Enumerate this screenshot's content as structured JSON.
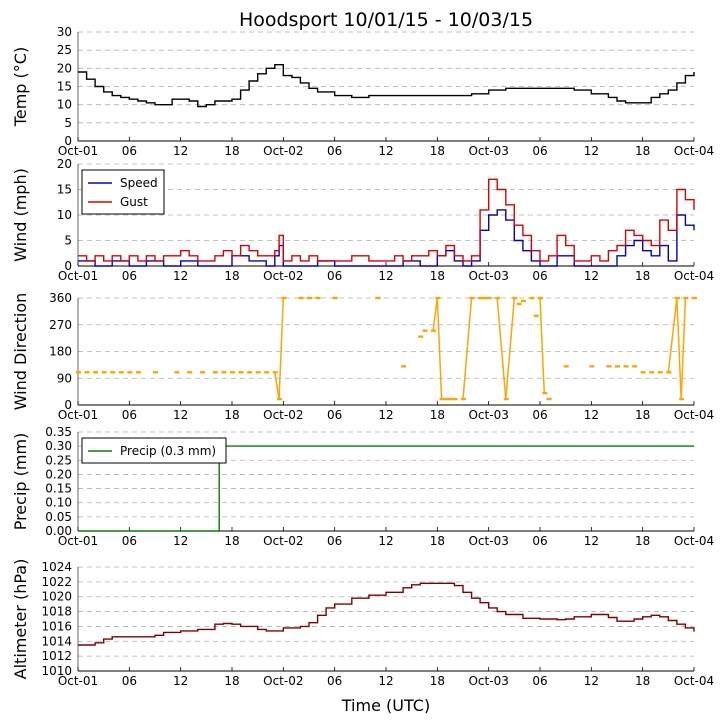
{
  "figure": {
    "title": "Hoodsport 10/01/15 - 10/03/15",
    "xlabel": "Time (UTC)"
  },
  "colors": {
    "temp": "#000000",
    "speed": "#0000cc",
    "gust": "#dd0000",
    "direction": "#ffa500",
    "precip": "#008000",
    "altimeter": "#800000",
    "grid": "#b0b0b0"
  },
  "chart_data": [
    {
      "type": "line",
      "id": "temp",
      "ylabel": "Temp (°C)",
      "ylim": [
        0,
        30
      ],
      "yticks": [
        "0",
        "5",
        "10",
        "15",
        "20",
        "25",
        "30"
      ],
      "xlim": [
        0,
        72
      ],
      "xticks": [
        "Oct-01",
        "06",
        "12",
        "18",
        "Oct-02",
        "06",
        "12",
        "18",
        "Oct-03",
        "06",
        "12",
        "18",
        "Oct-04"
      ],
      "series": [
        {
          "name": "Temperature",
          "x": [
            0,
            1,
            2,
            3,
            4,
            5,
            6,
            7,
            8,
            9,
            10,
            11,
            12,
            13,
            14,
            15,
            16,
            17,
            18,
            19,
            20,
            21,
            22,
            23,
            24,
            25,
            26,
            27,
            28,
            30,
            32,
            34,
            36,
            38,
            40,
            42,
            44,
            46,
            48,
            50,
            52,
            54,
            56,
            57,
            58,
            60,
            62,
            63,
            64,
            65,
            66,
            67,
            68,
            69,
            70,
            71,
            72
          ],
          "y": [
            19,
            17,
            15,
            13.5,
            12.5,
            12,
            11.5,
            11,
            10.5,
            10,
            10,
            11.5,
            11.5,
            11,
            9.5,
            10,
            11,
            11,
            11.5,
            14,
            16.5,
            18.5,
            20,
            21,
            18,
            17.5,
            16,
            14.5,
            13.5,
            12.5,
            12,
            12.5,
            12.5,
            12.5,
            12.5,
            12.5,
            12.5,
            13,
            14,
            14.5,
            14.5,
            14.5,
            14.5,
            14.5,
            14,
            13,
            12,
            11,
            10.5,
            10.5,
            10.5,
            12,
            13,
            14,
            16,
            18,
            19
          ]
        }
      ]
    },
    {
      "type": "line",
      "id": "wind",
      "ylabel": "Wind (mph)",
      "ylim": [
        0,
        20
      ],
      "yticks": [
        "0",
        "5",
        "10",
        "15",
        "20"
      ],
      "xlim": [
        0,
        72
      ],
      "xticks": [
        "Oct-01",
        "06",
        "12",
        "18",
        "Oct-02",
        "06",
        "12",
        "18",
        "Oct-03",
        "06",
        "12",
        "18",
        "Oct-04"
      ],
      "legend": {
        "position": "top-left",
        "entries": [
          "Speed",
          "Gust"
        ]
      },
      "series": [
        {
          "name": "Speed",
          "x": [
            0,
            2,
            4,
            6,
            8,
            10,
            12,
            14,
            16,
            18,
            20,
            22,
            23,
            23.5,
            24,
            26,
            28,
            30,
            32,
            34,
            36,
            38,
            40,
            42,
            43,
            44,
            45,
            46,
            47,
            48,
            49,
            50,
            51,
            52,
            53,
            54,
            55,
            56,
            57,
            58,
            60,
            62,
            63,
            64,
            65,
            66,
            67,
            68,
            69,
            70,
            71,
            72
          ],
          "y": [
            1,
            0,
            1,
            0,
            1,
            0,
            1,
            0,
            0,
            2,
            1,
            0,
            2,
            4,
            0,
            0,
            1,
            0,
            0,
            0,
            0,
            1,
            0,
            2,
            3,
            1,
            0,
            1,
            7,
            10,
            11,
            9,
            5,
            3,
            1,
            0,
            0,
            2,
            2,
            0,
            0,
            0,
            2,
            4,
            5,
            3,
            2,
            4,
            1,
            10,
            8,
            7
          ]
        },
        {
          "name": "Gust",
          "x": [
            0,
            1,
            2,
            3,
            4,
            5,
            6,
            7,
            8,
            9,
            10,
            11,
            12,
            13,
            14,
            15,
            16,
            17,
            18,
            19,
            20,
            21,
            22,
            23,
            23.5,
            24,
            25,
            26,
            27,
            28,
            30,
            32,
            34,
            36,
            37,
            38,
            39,
            40,
            41,
            42,
            43,
            44,
            45,
            46,
            47,
            48,
            49,
            50,
            51,
            52,
            53,
            54,
            55,
            56,
            57,
            58,
            59,
            60,
            61,
            62,
            63,
            64,
            65,
            66,
            67,
            68,
            69,
            70,
            71,
            72
          ],
          "y": [
            2,
            1,
            2,
            1,
            2,
            1,
            2,
            1,
            2,
            1,
            2,
            2,
            3,
            2,
            1,
            1,
            2,
            3,
            2,
            4,
            3,
            2,
            2,
            3,
            6,
            1,
            2,
            1,
            2,
            1,
            1,
            2,
            1,
            1,
            2,
            1,
            2,
            2,
            3,
            2,
            4,
            2,
            1,
            2,
            11,
            17,
            15,
            12,
            8,
            6,
            3,
            1,
            2,
            6,
            4,
            1,
            1,
            2,
            1,
            3,
            4,
            7,
            6,
            5,
            4,
            9,
            7,
            15,
            13,
            11
          ]
        }
      ]
    },
    {
      "type": "scatter",
      "id": "direction",
      "ylabel": "Wind Direction",
      "ylim": [
        0,
        360
      ],
      "yticks": [
        "0",
        "90",
        "180",
        "270",
        "360"
      ],
      "xlim": [
        0,
        72
      ],
      "xticks": [
        "Oct-01",
        "06",
        "12",
        "18",
        "Oct-02",
        "06",
        "12",
        "18",
        "Oct-03",
        "06",
        "12",
        "18",
        "Oct-04"
      ],
      "series": [
        {
          "name": "Direction",
          "x": [
            0,
            1,
            2,
            3,
            4,
            5,
            6,
            7,
            9,
            11.5,
            13,
            14.5,
            16,
            17,
            18,
            19,
            20,
            21,
            22,
            23,
            23.5,
            24,
            26,
            27,
            28,
            30,
            35,
            38,
            40,
            40.5,
            41.5,
            42,
            42.5,
            43,
            43.5,
            44,
            45,
            46,
            47,
            47.5,
            48,
            49,
            50,
            51,
            51.5,
            52,
            53,
            53.5,
            54,
            54.5,
            55,
            57,
            60,
            62,
            63,
            64,
            65,
            66,
            67,
            68,
            69,
            70,
            70.5,
            71,
            72
          ],
          "y": [
            110,
            110,
            110,
            110,
            110,
            110,
            110,
            110,
            110,
            110,
            110,
            110,
            110,
            110,
            110,
            110,
            110,
            110,
            110,
            110,
            20,
            360,
            360,
            360,
            360,
            360,
            360,
            130,
            230,
            250,
            250,
            360,
            20,
            20,
            20,
            20,
            20,
            360,
            360,
            360,
            360,
            360,
            20,
            360,
            340,
            350,
            360,
            300,
            360,
            40,
            20,
            130,
            130,
            130,
            130,
            130,
            130,
            110,
            110,
            110,
            110,
            360,
            20,
            360,
            360
          ]
        }
      ]
    },
    {
      "type": "line",
      "id": "precip",
      "ylabel": "Precip (mm)",
      "ylim": [
        0,
        0.35
      ],
      "yticks": [
        "0.00",
        "0.05",
        "0.10",
        "0.15",
        "0.20",
        "0.25",
        "0.30",
        "0.35"
      ],
      "xlim": [
        0,
        72
      ],
      "xticks": [
        "Oct-01",
        "06",
        "12",
        "18",
        "Oct-02",
        "06",
        "12",
        "18",
        "Oct-03",
        "06",
        "12",
        "18",
        "Oct-04"
      ],
      "legend": {
        "position": "top-left",
        "entries": [
          "Precip (0.3 mm)"
        ]
      },
      "series": [
        {
          "name": "Precip (0.3 mm)",
          "x": [
            0,
            16.4,
            16.5,
            72
          ],
          "y": [
            0,
            0,
            0.3,
            0.3
          ]
        }
      ]
    },
    {
      "type": "line",
      "id": "altimeter",
      "ylabel": "Altimeter (hPa)",
      "ylim": [
        1010,
        1024
      ],
      "yticks": [
        "1010",
        "1012",
        "1014",
        "1016",
        "1018",
        "1020",
        "1022",
        "1024"
      ],
      "xlim": [
        0,
        72
      ],
      "xticks": [
        "Oct-01",
        "06",
        "12",
        "18",
        "Oct-02",
        "06",
        "12",
        "18",
        "Oct-03",
        "06",
        "12",
        "18",
        "Oct-04"
      ],
      "series": [
        {
          "name": "Altimeter",
          "x": [
            0,
            1,
            2,
            3,
            4,
            6,
            8,
            9,
            10,
            12,
            14,
            16,
            17,
            18,
            19,
            20,
            21,
            22,
            23,
            24,
            26,
            27,
            28,
            29,
            30,
            32,
            34,
            36,
            38,
            39,
            40,
            42,
            44,
            45,
            46,
            47,
            48,
            49,
            50,
            52,
            54,
            56,
            57,
            58,
            60,
            62,
            63,
            64,
            65,
            66,
            67,
            68,
            69,
            70,
            71,
            72
          ],
          "y": [
            1013.5,
            1013.5,
            1013.8,
            1014.3,
            1014.6,
            1014.6,
            1014.6,
            1014.8,
            1015.2,
            1015.4,
            1015.6,
            1016.3,
            1016.4,
            1016.3,
            1016,
            1016,
            1015.6,
            1015.4,
            1015.4,
            1015.8,
            1016,
            1016.5,
            1017.5,
            1018.5,
            1019,
            1019.8,
            1020.2,
            1020.6,
            1021.2,
            1021.6,
            1021.8,
            1021.8,
            1021.5,
            1020.6,
            1019.8,
            1019.2,
            1018.5,
            1018,
            1017.6,
            1017.1,
            1017,
            1016.9,
            1017,
            1017.3,
            1017.6,
            1017.2,
            1016.7,
            1016.7,
            1017,
            1017.3,
            1017.5,
            1017.3,
            1016.8,
            1016.3,
            1015.8,
            1015.3
          ]
        }
      ]
    }
  ]
}
